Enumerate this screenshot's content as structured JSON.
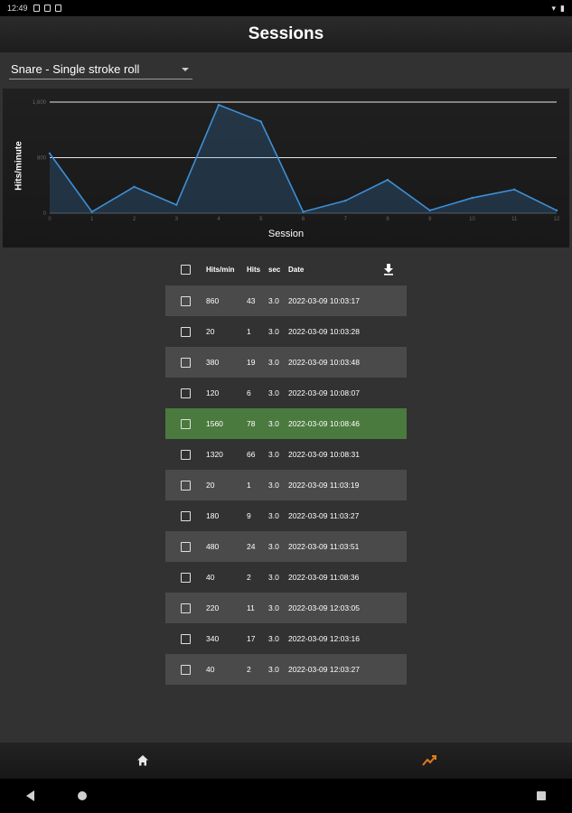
{
  "status_bar": {
    "time": "12:49"
  },
  "app_bar": {
    "title": "Sessions"
  },
  "dropdown": {
    "selected": "Snare - Single stroke roll"
  },
  "chart_data": {
    "type": "area",
    "xlabel": "Session",
    "ylabel": "Hits/minute",
    "x": [
      0,
      1,
      2,
      3,
      4,
      5,
      6,
      7,
      8,
      9,
      10,
      11,
      12
    ],
    "tick_labels_x": [
      "0",
      "1",
      "2",
      "3",
      "4",
      "5",
      "6",
      "7",
      "8",
      "9",
      "10",
      "11",
      "12"
    ],
    "series": [
      {
        "values": [
          860,
          20,
          380,
          120,
          1560,
          1320,
          20,
          180,
          480,
          40,
          220,
          340,
          40
        ]
      }
    ],
    "y_ticks": [
      "0",
      "800",
      "1,600"
    ],
    "ylim": [
      0,
      1600
    ],
    "reference_lines": [
      800,
      1600
    ],
    "color": "#3d8fd6"
  },
  "table": {
    "headers": {
      "hits_per_min": "Hits/min",
      "hits": "Hits",
      "sec": "sec",
      "date": "Date"
    },
    "rows": [
      {
        "hpm": "860",
        "hits": "43",
        "sec": "3.0",
        "date": "2022-03-09 10:03:17"
      },
      {
        "hpm": "20",
        "hits": "1",
        "sec": "3.0",
        "date": "2022-03-09 10:03:28"
      },
      {
        "hpm": "380",
        "hits": "19",
        "sec": "3.0",
        "date": "2022-03-09 10:03:48"
      },
      {
        "hpm": "120",
        "hits": "6",
        "sec": "3.0",
        "date": "2022-03-09 10:08:07"
      },
      {
        "hpm": "1560",
        "hits": "78",
        "sec": "3.0",
        "date": "2022-03-09 10:08:46"
      },
      {
        "hpm": "1320",
        "hits": "66",
        "sec": "3.0",
        "date": "2022-03-09 10:08:31"
      },
      {
        "hpm": "20",
        "hits": "1",
        "sec": "3.0",
        "date": "2022-03-09 11:03:19"
      },
      {
        "hpm": "180",
        "hits": "9",
        "sec": "3.0",
        "date": "2022-03-09 11:03:27"
      },
      {
        "hpm": "480",
        "hits": "24",
        "sec": "3.0",
        "date": "2022-03-09 11:03:51"
      },
      {
        "hpm": "40",
        "hits": "2",
        "sec": "3.0",
        "date": "2022-03-09 11:08:36"
      },
      {
        "hpm": "220",
        "hits": "11",
        "sec": "3.0",
        "date": "2022-03-09 12:03:05"
      },
      {
        "hpm": "340",
        "hits": "17",
        "sec": "3.0",
        "date": "2022-03-09 12:03:16"
      },
      {
        "hpm": "40",
        "hits": "2",
        "sec": "3.0",
        "date": "2022-03-09 12:03:27"
      }
    ],
    "highlighted_row": 4,
    "highlight_color": "#4a7a3e"
  },
  "bottom_nav": {
    "items": [
      "home-icon",
      "stats-icon"
    ],
    "active": "stats-icon",
    "active_color": "#e07b1a"
  }
}
